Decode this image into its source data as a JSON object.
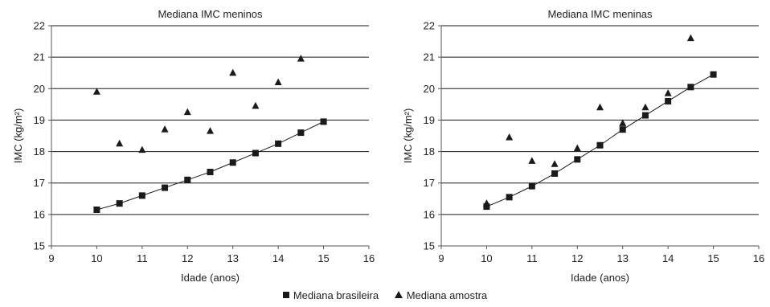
{
  "legend": {
    "series1": "Mediana brasileira",
    "series2": "Mediana amostra"
  },
  "colors": {
    "marker": "#1a1a1a",
    "grid": "#1a1a1a",
    "axis": "#555555"
  },
  "chart_data": [
    {
      "type": "scatter",
      "title": "Mediana IMC meninos",
      "xlabel": "Idade (anos)",
      "ylabel": "IMC (kg/m²)",
      "xlim": [
        9,
        16
      ],
      "ylim": [
        15,
        22
      ],
      "xticks": [
        "9",
        "10",
        "11",
        "12",
        "13",
        "14",
        "15",
        "16"
      ],
      "yticks": [
        "15",
        "16",
        "17",
        "18",
        "19",
        "20",
        "21",
        "22"
      ],
      "grid": "horizontal",
      "series": [
        {
          "name": "Mediana brasileira",
          "marker": "square",
          "trendline": true,
          "x": [
            10.0,
            10.5,
            11.0,
            11.5,
            12.0,
            12.5,
            13.0,
            13.5,
            14.0,
            14.5,
            15.0
          ],
          "y": [
            16.15,
            16.35,
            16.6,
            16.85,
            17.1,
            17.35,
            17.65,
            17.95,
            18.25,
            18.6,
            18.95
          ]
        },
        {
          "name": "Mediana amostra",
          "marker": "triangle",
          "x": [
            10.0,
            10.5,
            11.0,
            11.5,
            12.0,
            12.5,
            13.0,
            13.5,
            14.0,
            14.5
          ],
          "y": [
            19.9,
            18.25,
            18.05,
            18.7,
            19.25,
            18.65,
            20.5,
            19.45,
            20.2,
            20.95
          ]
        }
      ]
    },
    {
      "type": "scatter",
      "title": "Mediana IMC meninas",
      "xlabel": "Idade (anos)",
      "ylabel": "IMC (kg/m²)",
      "xlim": [
        9,
        16
      ],
      "ylim": [
        15,
        22
      ],
      "xticks": [
        "9",
        "10",
        "11",
        "12",
        "13",
        "14",
        "15",
        "16"
      ],
      "yticks": [
        "15",
        "16",
        "17",
        "18",
        "19",
        "20",
        "21",
        "22"
      ],
      "grid": "horizontal",
      "series": [
        {
          "name": "Mediana brasileira",
          "marker": "square",
          "trendline": true,
          "x": [
            10.0,
            10.5,
            11.0,
            11.5,
            12.0,
            12.5,
            13.0,
            13.5,
            14.0,
            14.5,
            15.0
          ],
          "y": [
            16.25,
            16.55,
            16.9,
            17.3,
            17.75,
            18.2,
            18.7,
            19.15,
            19.6,
            20.05,
            20.45
          ]
        },
        {
          "name": "Mediana amostra",
          "marker": "triangle",
          "x": [
            10.0,
            10.5,
            11.0,
            11.5,
            12.0,
            12.5,
            13.0,
            13.5,
            14.0,
            14.5
          ],
          "y": [
            16.35,
            18.45,
            17.7,
            17.6,
            18.1,
            19.4,
            18.9,
            19.4,
            19.85,
            21.6
          ]
        }
      ]
    }
  ]
}
